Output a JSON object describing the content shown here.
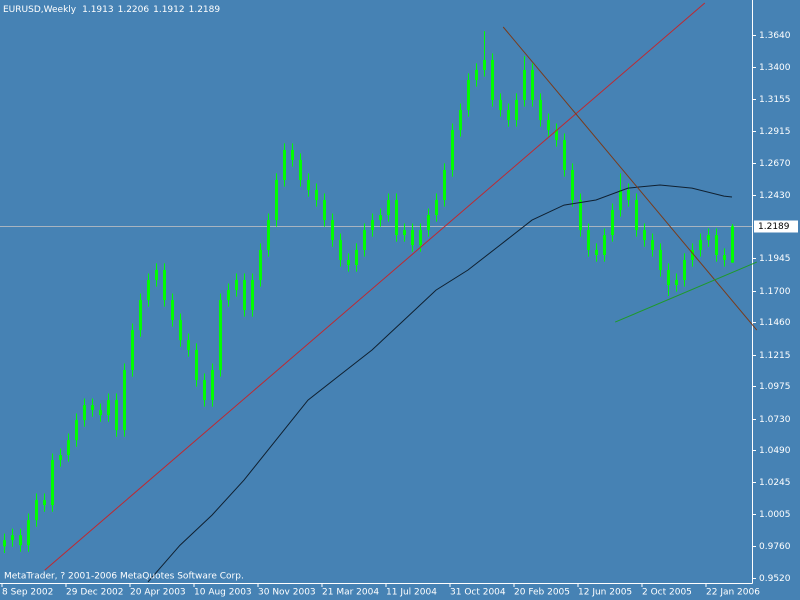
{
  "chart_data": {
    "type": "candlestick",
    "title": "EURUSD,Weekly",
    "footer": "MetaTrader, ? 2001-2006 MetaQuotes Software Corp.",
    "color": "#00ff00",
    "categories": [
      "8 Sep 2002",
      null,
      null,
      null,
      null,
      null,
      null,
      null,
      "29 Dec 2002",
      null,
      null,
      null,
      null,
      null,
      null,
      null,
      "20 Apr 2003",
      null,
      null,
      null,
      null,
      null,
      null,
      null,
      "10 Aug 2003",
      null,
      null,
      null,
      null,
      null,
      null,
      null,
      "30 Nov 2003",
      null,
      null,
      null,
      null,
      null,
      null,
      null,
      "21 Mar 2004",
      null,
      null,
      null,
      null,
      null,
      null,
      null,
      "11 Jul 2004",
      null,
      null,
      null,
      null,
      null,
      null,
      null,
      "31 Oct 2004",
      null,
      null,
      null,
      null,
      null,
      null,
      null,
      "20 Feb 2005",
      null,
      null,
      null,
      null,
      null,
      null,
      null,
      "12 Jun 2005",
      null,
      null,
      null,
      null,
      null,
      null,
      null,
      "2 Oct 2005",
      null,
      null,
      null,
      null,
      null,
      null,
      null,
      "22 Jan 2006",
      null,
      null,
      null
    ],
    "open": [
      0.976,
      0.9807,
      0.9845,
      0.9769,
      0.9959,
      1.0111,
      1.0073,
      1.0415,
      1.0453,
      1.0566,
      1.0718,
      1.0832,
      1.0794,
      1.0756,
      1.087,
      1.0642,
      1.1098,
      1.1401,
      1.1629,
      1.1781,
      1.1857,
      1.1629,
      1.1477,
      1.1325,
      1.125,
      1.1022,
      1.087,
      1.1098,
      1.1629,
      1.1705,
      1.1781,
      1.1553,
      1.1781,
      1.2009,
      1.2236,
      1.254,
      1.2768,
      1.2692,
      1.254,
      1.2464,
      1.2388,
      1.2236,
      1.2084,
      1.1933,
      1.1895,
      1.2009,
      1.216,
      1.2236,
      1.2274,
      1.2388,
      1.2122,
      1.216,
      1.2046,
      1.216,
      1.2274,
      1.2388,
      1.2616,
      1.2919,
      1.3071,
      1.3299,
      1.3375,
      1.3451,
      1.3147,
      1.3071,
      1.2995,
      1.3147,
      1.3375,
      1.3147,
      1.2995,
      1.2919,
      1.2843,
      1.2616,
      1.2388,
      1.216,
      1.2009,
      1.1971,
      1.2122,
      1.2312,
      1.2464,
      1.2388,
      1.216,
      1.2084,
      1.2009,
      1.1857,
      1.1743,
      1.1781,
      1.1933,
      1.2009,
      1.2084,
      1.2122,
      1.1971,
      1.1913
    ],
    "high": [
      0.9857,
      0.9895,
      0.9895,
      1.0009,
      1.0161,
      1.0161,
      1.0465,
      1.0503,
      1.0616,
      1.0768,
      1.0882,
      1.0882,
      1.0844,
      1.092,
      1.092,
      1.1148,
      1.1451,
      1.1679,
      1.1831,
      1.1907,
      1.1907,
      1.1679,
      1.1527,
      1.1375,
      1.13,
      1.1072,
      1.1148,
      1.1679,
      1.1755,
      1.1831,
      1.1831,
      1.1831,
      1.2059,
      1.2286,
      1.259,
      1.2818,
      1.2818,
      1.2742,
      1.259,
      1.2514,
      1.2438,
      1.2286,
      1.2134,
      1.1983,
      1.2059,
      1.221,
      1.2286,
      1.2324,
      1.2438,
      1.2438,
      1.221,
      1.221,
      1.221,
      1.2324,
      1.2438,
      1.2666,
      1.2969,
      1.3121,
      1.3349,
      1.3425,
      1.367,
      1.3501,
      1.3197,
      1.3121,
      1.3197,
      1.348,
      1.3425,
      1.3197,
      1.3045,
      1.2969,
      1.2893,
      1.2666,
      1.2438,
      1.221,
      1.2059,
      1.2172,
      1.2362,
      1.259,
      1.2514,
      1.2438,
      1.221,
      1.2134,
      1.2059,
      1.1907,
      1.1831,
      1.1983,
      1.2059,
      1.2134,
      1.2172,
      1.2172,
      1.2021,
      1.2206
    ],
    "low": [
      0.971,
      0.9757,
      0.9719,
      0.9719,
      0.9909,
      1.0023,
      1.0023,
      1.0365,
      1.0403,
      1.0516,
      1.0668,
      1.0744,
      1.0706,
      1.0706,
      1.0592,
      1.0592,
      1.1048,
      1.1351,
      1.1579,
      1.1731,
      1.1579,
      1.1427,
      1.1275,
      1.12,
      1.0972,
      1.082,
      1.082,
      1.1048,
      1.1579,
      1.1655,
      1.1503,
      1.1503,
      1.1731,
      1.1959,
      1.2186,
      1.249,
      1.2642,
      1.249,
      1.2414,
      1.2338,
      1.2186,
      1.2034,
      1.1883,
      1.1845,
      1.1845,
      1.1959,
      1.211,
      1.2186,
      1.2224,
      1.2072,
      1.2072,
      1.1996,
      1.1996,
      1.211,
      1.2224,
      1.2338,
      1.2566,
      1.2869,
      1.3021,
      1.3249,
      1.3325,
      1.3097,
      1.3021,
      1.2945,
      1.2945,
      1.3097,
      1.3097,
      1.2945,
      1.2869,
      1.2793,
      1.2566,
      1.2338,
      1.211,
      1.1959,
      1.1921,
      1.1921,
      1.2072,
      1.2262,
      1.2338,
      1.211,
      1.2034,
      1.1959,
      1.1807,
      1.166,
      1.1693,
      1.1731,
      1.1883,
      1.1959,
      1.2034,
      1.1921,
      1.1883,
      1.1912
    ],
    "close": [
      0.9807,
      0.9845,
      0.9769,
      0.9959,
      1.0111,
      1.0073,
      1.0415,
      1.0453,
      1.0566,
      1.0718,
      1.0832,
      1.0794,
      1.0756,
      1.087,
      1.0642,
      1.1098,
      1.1401,
      1.1629,
      1.1781,
      1.1857,
      1.1629,
      1.1477,
      1.1325,
      1.125,
      1.1022,
      1.087,
      1.1098,
      1.1629,
      1.1705,
      1.1781,
      1.1553,
      1.1781,
      1.2009,
      1.2236,
      1.254,
      1.2768,
      1.2692,
      1.254,
      1.2464,
      1.2388,
      1.2236,
      1.2084,
      1.1933,
      1.1895,
      1.2009,
      1.216,
      1.2236,
      1.2274,
      1.2388,
      1.2122,
      1.216,
      1.2046,
      1.216,
      1.2274,
      1.2388,
      1.2616,
      1.2919,
      1.3071,
      1.3299,
      1.3375,
      1.3451,
      1.3147,
      1.3071,
      1.2995,
      1.3147,
      1.3375,
      1.3147,
      1.2995,
      1.2919,
      1.2843,
      1.2616,
      1.2388,
      1.216,
      1.2009,
      1.1971,
      1.2122,
      1.2312,
      1.2464,
      1.2388,
      1.216,
      1.2084,
      1.2009,
      1.1857,
      1.1743,
      1.1781,
      1.1933,
      1.2009,
      1.2084,
      1.2122,
      1.1971,
      1.1933,
      1.2189
    ],
    "ylim": [
      0.9482,
      1.3906
    ],
    "yticks": [
      {
        "value": 1.364,
        "label": "1.3640"
      },
      {
        "value": 1.34,
        "label": "1.3400"
      },
      1.3155,
      1.2915,
      {
        "value": 1.267,
        "label": "1.2670"
      },
      {
        "value": 1.243,
        "label": "1.2430"
      },
      1.1945,
      {
        "value": 1.17,
        "label": "1.1700"
      },
      {
        "value": 1.146,
        "label": "1.1460"
      },
      1.1215,
      1.0975,
      {
        "value": 1.073,
        "label": "1.0730"
      },
      {
        "value": 1.049,
        "label": "1.0490"
      },
      1.0245,
      1.0005,
      {
        "value": 0.976,
        "label": "0.9760"
      },
      {
        "value": 0.952,
        "label": "0.9520"
      }
    ],
    "bid": 1.2189,
    "ma": {
      "color": "#102030",
      "x": [
        18,
        22,
        26,
        30,
        34,
        38,
        42,
        46,
        50,
        54,
        58,
        62,
        66,
        70,
        74,
        78,
        82,
        86,
        90,
        91
      ],
      "values": [
        0.949,
        0.9769,
        0.9997,
        1.0263,
        1.0566,
        1.087,
        1.106,
        1.125,
        1.1477,
        1.1705,
        1.1857,
        1.2046,
        1.2236,
        1.235,
        1.2388,
        1.2479,
        1.2502,
        1.2479,
        1.2418,
        1.2411
      ]
    },
    "trendlines": [
      {
        "color": "#c0282f",
        "x": [
          5.1,
          87.6
        ],
        "values": [
          0.958,
          1.3883
        ]
      },
      {
        "color": "#7a3b1a",
        "x": [
          62.4,
          94.1
        ],
        "values": [
          1.3701,
          1.1401
        ]
      },
      {
        "color": "#1e9a2a",
        "x": [
          76.4,
          94.1
        ],
        "values": [
          1.1462,
          1.1917
        ]
      }
    ]
  }
}
